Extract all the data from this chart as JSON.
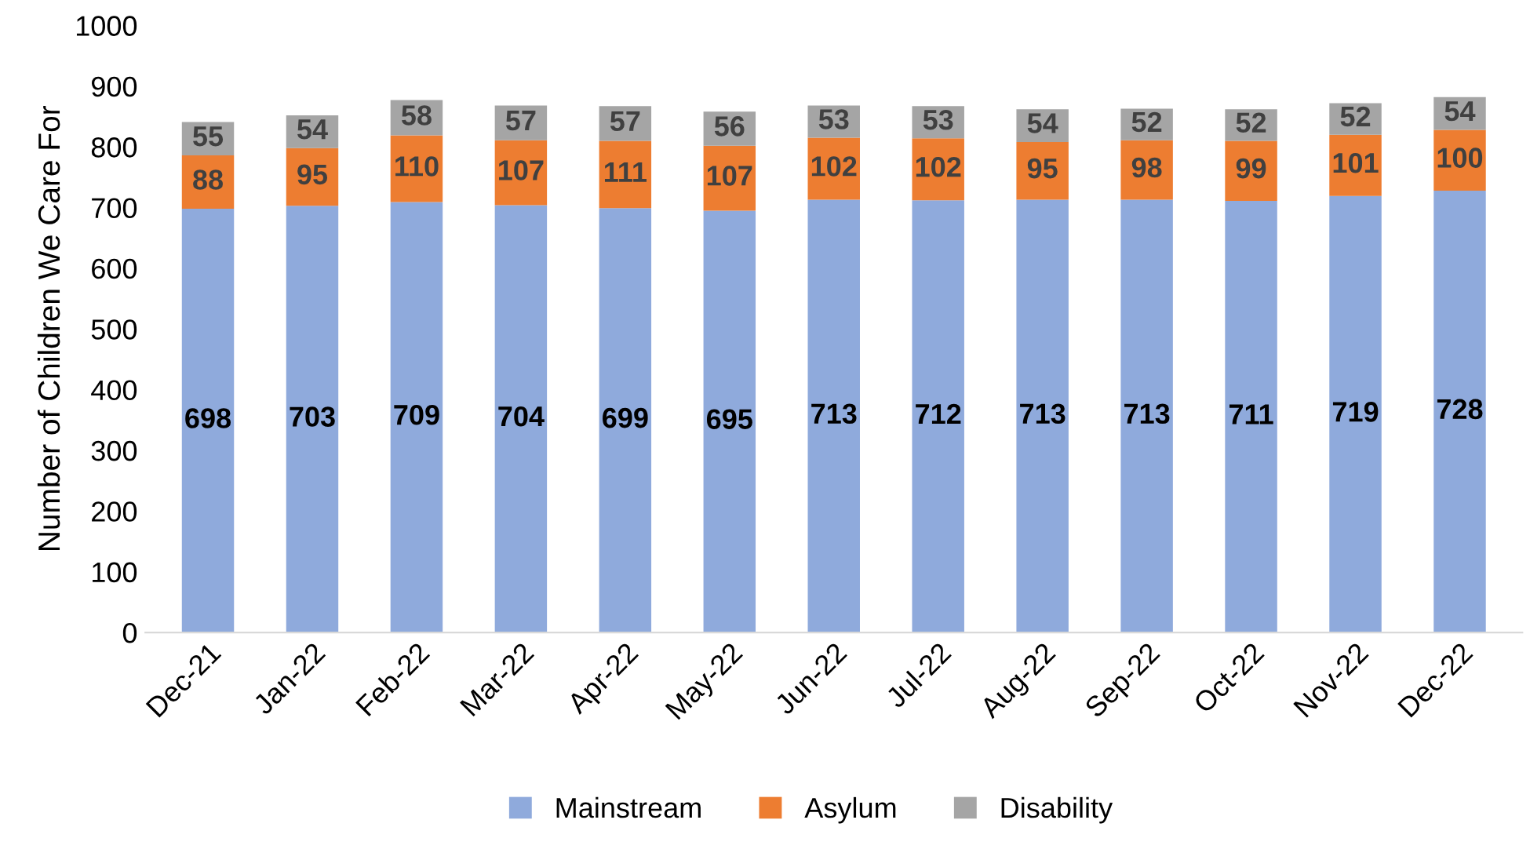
{
  "chart_data": {
    "type": "bar",
    "stacked": true,
    "ylabel": "Number of Children We Care For",
    "categories": [
      "Dec-21",
      "Jan-22",
      "Feb-22",
      "Mar-22",
      "Apr-22",
      "May-22",
      "Jun-22",
      "Jul-22",
      "Aug-22",
      "Sep-22",
      "Oct-22",
      "Nov-22",
      "Dec-22"
    ],
    "series": [
      {
        "name": "Mainstream",
        "color": "#8faadc",
        "values": [
          698,
          703,
          709,
          704,
          699,
          695,
          713,
          712,
          713,
          713,
          711,
          719,
          728
        ]
      },
      {
        "name": "Asylum",
        "color": "#ed7d31",
        "values": [
          88,
          95,
          110,
          107,
          111,
          107,
          102,
          102,
          95,
          98,
          99,
          101,
          100
        ]
      },
      {
        "name": "Disability",
        "color": "#a5a5a5",
        "values": [
          55,
          54,
          58,
          57,
          57,
          56,
          53,
          53,
          54,
          52,
          52,
          52,
          54
        ]
      }
    ],
    "ylim": [
      0,
      1000
    ],
    "yticks": [
      0,
      100,
      200,
      300,
      400,
      500,
      600,
      700,
      800,
      900,
      1000
    ],
    "grid": false,
    "legend": "bottom",
    "data_labels": true
  }
}
